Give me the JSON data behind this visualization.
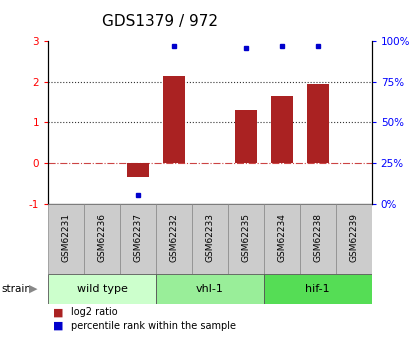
{
  "title": "GDS1379 / 972",
  "samples": [
    "GSM62231",
    "GSM62236",
    "GSM62237",
    "GSM62232",
    "GSM62233",
    "GSM62235",
    "GSM62234",
    "GSM62238",
    "GSM62239"
  ],
  "log2_ratio": [
    0,
    0,
    -0.35,
    2.15,
    0,
    1.3,
    1.65,
    1.95,
    0
  ],
  "percentile_rank": [
    null,
    null,
    5,
    97,
    null,
    96,
    97,
    97,
    null
  ],
  "groups": [
    {
      "label": "wild type",
      "start": 0,
      "end": 3,
      "color": "#ccffcc"
    },
    {
      "label": "vhl-1",
      "start": 3,
      "end": 6,
      "color": "#99ee99"
    },
    {
      "label": "hif-1",
      "start": 6,
      "end": 9,
      "color": "#55dd55"
    }
  ],
  "bar_color": "#aa2222",
  "dot_color": "#0000cc",
  "ylim_left": [
    -1,
    3
  ],
  "ylim_right": [
    0,
    100
  ],
  "right_ticks": [
    0,
    25,
    50,
    75,
    100
  ],
  "right_tick_labels": [
    "0%",
    "25%",
    "50%",
    "75%",
    "100%"
  ],
  "left_ticks": [
    -1,
    0,
    1,
    2,
    3
  ],
  "hline_y": [
    0,
    1,
    2
  ],
  "hline_styles": [
    "dashdot",
    "dotted",
    "dotted"
  ],
  "hline_colors": [
    "#cc4444",
    "#333333",
    "#333333"
  ],
  "background_color": "#ffffff",
  "plot_bg": "#ffffff",
  "title_fontsize": 11,
  "tick_fontsize": 7.5,
  "label_fontsize": 6.5,
  "group_fontsize": 8,
  "legend_label_log2": "log2 ratio",
  "legend_label_pct": "percentile rank within the sample",
  "strain_label": "strain"
}
